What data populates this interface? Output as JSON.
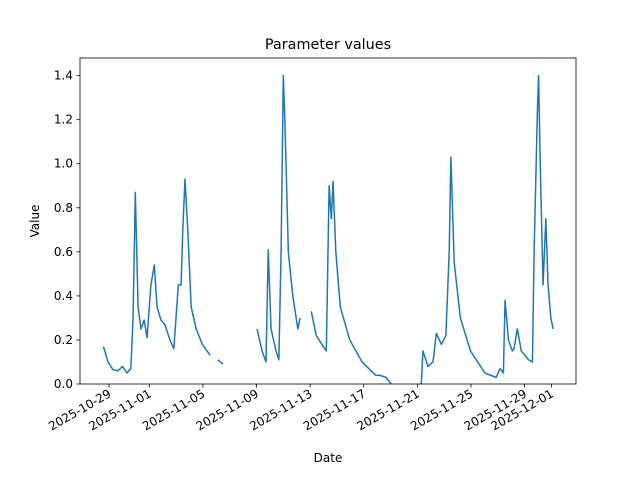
{
  "chart_data": {
    "type": "line",
    "title": "Parameter values",
    "x_label": "Date",
    "y_label": "Value",
    "x": [
      "2025-10-28T14:00",
      "2025-10-28T22:00",
      "2025-10-29T07:00",
      "2025-10-29T16:00",
      "2025-10-30T00:00",
      "2025-10-30T08:00",
      "2025-10-30T15:00",
      "2025-10-30T19:00",
      "2025-10-30T23:00",
      "2025-10-31T04:00",
      "2025-10-31T09:00",
      "2025-10-31T15:00",
      "2025-10-31T20:00",
      "2025-11-01T03:00",
      "2025-11-01T09:00",
      "2025-11-01T14:00",
      "2025-11-01T21:00",
      "2025-11-02T04:00",
      "2025-11-02T13:00",
      "2025-11-02T20:00",
      "2025-11-03T04:00",
      "2025-11-03T09:00",
      "2025-11-03T12:00",
      "2025-11-03T16:00",
      "2025-11-03T21:00",
      "2025-11-04T03:00",
      "2025-11-04T12:00",
      "2025-11-04T23:00",
      "2025-11-05T13:00",
      "2025-11-05T20:00",
      "2025-11-06T03:00",
      "2025-11-06T12:00",
      "2025-11-08T00:00",
      "2025-11-09T01:00",
      "2025-11-09T10:00",
      "2025-11-09T17:00",
      "2025-11-09T21:00",
      "2025-11-10T02:00",
      "2025-11-10T11:00",
      "2025-11-10T16:00",
      "2025-11-10T20:00",
      "2025-11-11T00:00",
      "2025-11-11T03:00",
      "2025-11-11T09:00",
      "2025-11-11T17:00",
      "2025-11-12T02:00",
      "2025-11-12T06:00",
      "2025-11-12T16:00",
      "2025-11-13T02:00",
      "2025-11-13T11:00",
      "2025-11-13T21:00",
      "2025-11-14T05:00",
      "2025-11-14T10:00",
      "2025-11-14T14:00",
      "2025-11-14T17:00",
      "2025-11-14T22:00",
      "2025-11-15T06:00",
      "2025-11-15T23:00",
      "2025-11-16T21:00",
      "2025-11-17T21:00",
      "2025-11-18T04:00",
      "2025-11-18T16:00",
      "2025-11-19T01:00",
      "2025-11-20T04:00",
      "2025-11-21T07:00",
      "2025-11-21T10:00",
      "2025-11-21T19:00",
      "2025-11-22T04:00",
      "2025-11-22T10:00",
      "2025-11-22T19:00",
      "2025-11-23T03:00",
      "2025-11-23T09:00",
      "2025-11-23T12:00",
      "2025-11-23T18:00",
      "2025-11-24T05:00",
      "2025-11-24T23:00",
      "2025-11-26T01:00",
      "2025-11-26T21:00",
      "2025-11-27T04:00",
      "2025-11-27T10:00",
      "2025-11-27T13:00",
      "2025-11-27T19:00",
      "2025-11-28T02:00",
      "2025-11-28T05:00",
      "2025-11-28T11:00",
      "2025-11-28T18:00",
      "2025-11-29T07:00",
      "2025-11-29T14:00",
      "2025-11-29T17:00",
      "2025-11-29T23:00",
      "2025-11-30T01:00",
      "2025-11-30T04:00",
      "2025-11-30T09:00",
      "2025-11-30T14:00",
      "2025-11-30T18:00",
      "2025-11-30T23:00",
      "2025-12-01T03:00"
    ],
    "series": [
      {
        "name": "Value",
        "color": "#1f77b4",
        "values": [
          0.17,
          0.1,
          0.065,
          0.06,
          0.08,
          0.05,
          0.07,
          0.3,
          0.87,
          0.35,
          0.25,
          0.29,
          0.21,
          0.45,
          0.54,
          0.35,
          0.29,
          0.27,
          0.2,
          0.16,
          0.45,
          0.45,
          0.7,
          0.93,
          0.7,
          0.35,
          0.25,
          0.18,
          0.13,
          null,
          0.11,
          0.09,
          null,
          0.25,
          0.15,
          0.1,
          0.61,
          0.25,
          0.15,
          0.11,
          0.6,
          1.4,
          1.18,
          0.6,
          0.4,
          0.25,
          0.3,
          null,
          0.33,
          0.22,
          0.18,
          0.15,
          0.9,
          0.75,
          0.92,
          0.6,
          0.35,
          0.2,
          0.1,
          0.04,
          0.04,
          0.03,
          0.0,
          null,
          0.0,
          0.15,
          0.08,
          0.1,
          0.23,
          0.18,
          0.22,
          0.6,
          1.03,
          0.55,
          0.3,
          0.15,
          0.05,
          0.03,
          0.07,
          0.05,
          0.38,
          0.2,
          0.15,
          0.16,
          0.25,
          0.15,
          0.11,
          0.1,
          0.6,
          1.25,
          1.4,
          1.0,
          0.45,
          0.75,
          0.45,
          0.3,
          0.25
        ]
      }
    ],
    "xlim": [
      "2025-10-26T20:00",
      "2025-12-02T20:00"
    ],
    "xticks": [
      "2025-10-29",
      "2025-11-01",
      "2025-11-05",
      "2025-11-09",
      "2025-11-13",
      "2025-11-17",
      "2025-11-21",
      "2025-11-25",
      "2025-11-29",
      "2025-12-01"
    ],
    "ylim": [
      0,
      1.48
    ],
    "yticks": [
      {
        "value": 0,
        "label": "0.0"
      },
      0.2,
      0.4,
      0.6,
      0.8,
      {
        "value": 1,
        "label": "1.0"
      },
      1.2,
      1.4
    ]
  }
}
